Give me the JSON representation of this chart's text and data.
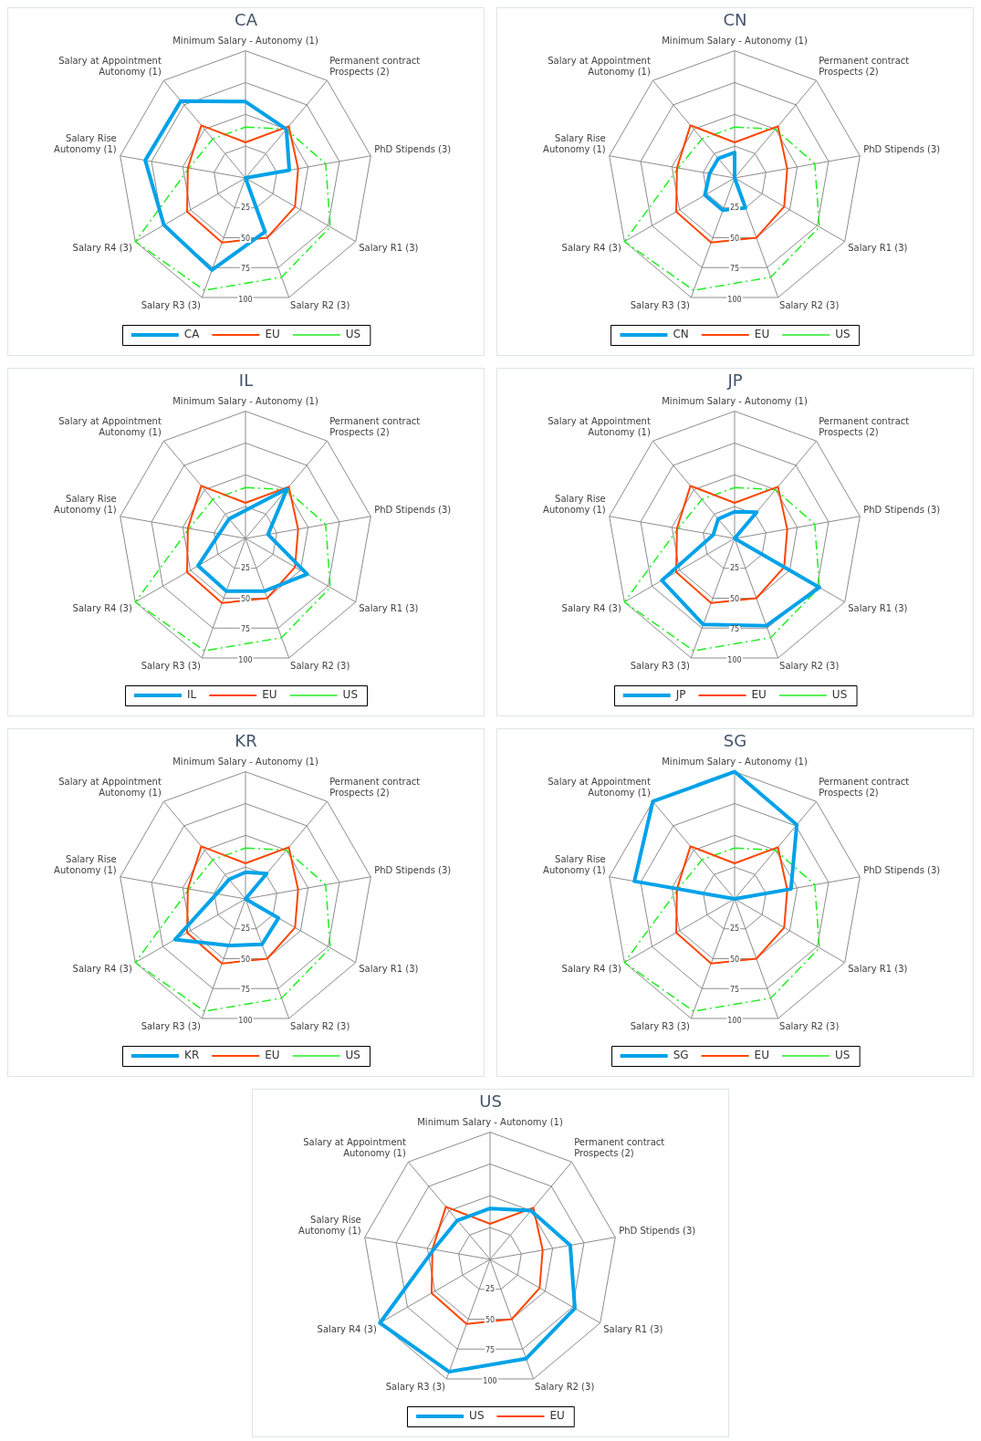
{
  "chart_data": [
    {
      "type": "radar",
      "title": "CA",
      "categories": [
        "Minimum Salary - Autonomy (1)",
        "Permanent contract Prospects (2)",
        "PhD Stipends (3)",
        "Salary R1 (3)",
        "Salary R2 (3)",
        "Salary R3 (3)",
        "Salary R4 (3)",
        "Salary Rise Autonomy (1)",
        "Salary at Appointment Autonomy (1)"
      ],
      "ylim": [
        0,
        100
      ],
      "yticks": [
        25,
        50,
        75,
        100
      ],
      "grid": true,
      "legend": "bottom",
      "series": [
        {
          "name": "CA",
          "color": "#00a2e8",
          "values": [
            60,
            50,
            35,
            0,
            45,
            77,
            74,
            80,
            79
          ]
        },
        {
          "name": "EU",
          "color": "#ff4500",
          "values": [
            28,
            53,
            42,
            45,
            50,
            54,
            53,
            46,
            54
          ]
        },
        {
          "name": "US",
          "color": "#22ee22",
          "line_style": "dashed",
          "values": [
            40,
            50,
            64,
            77,
            83,
            94,
            100,
            45,
            40
          ]
        }
      ]
    },
    {
      "type": "radar",
      "title": "CN",
      "categories": [
        "Minimum Salary - Autonomy (1)",
        "Permanent contract Prospects (2)",
        "PhD Stipends (3)",
        "Salary R1 (3)",
        "Salary R2 (3)",
        "Salary R3 (3)",
        "Salary R4 (3)",
        "Salary Rise Autonomy (1)",
        "Salary at Appointment Autonomy (1)"
      ],
      "ylim": [
        0,
        100
      ],
      "yticks": [
        25,
        50,
        75,
        100
      ],
      "grid": true,
      "legend": "bottom",
      "series": [
        {
          "name": "CN",
          "color": "#00a2e8",
          "values": [
            20,
            0,
            0,
            0,
            25,
            27,
            27,
            20,
            20
          ]
        },
        {
          "name": "EU",
          "color": "#ff4500",
          "values": [
            28,
            53,
            42,
            45,
            50,
            54,
            53,
            46,
            54
          ]
        },
        {
          "name": "US",
          "color": "#22ee22",
          "line_style": "dashed",
          "values": [
            40,
            50,
            64,
            77,
            83,
            94,
            100,
            45,
            40
          ]
        }
      ]
    },
    {
      "type": "radar",
      "title": "IL",
      "categories": [
        "Minimum Salary - Autonomy (1)",
        "Permanent contract Prospects (2)",
        "PhD Stipends (3)",
        "Salary R1 (3)",
        "Salary R2 (3)",
        "Salary R3 (3)",
        "Salary R4 (3)",
        "Salary Rise Autonomy (1)",
        "Salary at Appointment Autonomy (1)"
      ],
      "ylim": [
        0,
        100
      ],
      "yticks": [
        25,
        50,
        75,
        100
      ],
      "grid": true,
      "legend": "bottom",
      "series": [
        {
          "name": "IL",
          "color": "#00a2e8",
          "values": [
            22,
            51,
            18,
            56,
            44,
            44,
            43,
            21,
            20
          ]
        },
        {
          "name": "EU",
          "color": "#ff4500",
          "values": [
            28,
            53,
            42,
            45,
            50,
            54,
            53,
            46,
            54
          ]
        },
        {
          "name": "US",
          "color": "#22ee22",
          "line_style": "dashed",
          "values": [
            40,
            50,
            64,
            77,
            83,
            94,
            100,
            45,
            40
          ]
        }
      ]
    },
    {
      "type": "radar",
      "title": "JP",
      "categories": [
        "Minimum Salary - Autonomy (1)",
        "Permanent contract Prospects (2)",
        "PhD Stipends (3)",
        "Salary R1 (3)",
        "Salary R2 (3)",
        "Salary R3 (3)",
        "Salary R4 (3)",
        "Salary Rise Autonomy (1)",
        "Salary at Appointment Autonomy (1)"
      ],
      "ylim": [
        0,
        100
      ],
      "yticks": [
        25,
        50,
        75,
        100
      ],
      "grid": true,
      "legend": "bottom",
      "series": [
        {
          "name": "JP",
          "color": "#00a2e8",
          "values": [
            21,
            27,
            0,
            77,
            73,
            72,
            66,
            17,
            20
          ]
        },
        {
          "name": "EU",
          "color": "#ff4500",
          "values": [
            28,
            53,
            42,
            45,
            50,
            54,
            53,
            46,
            54
          ]
        },
        {
          "name": "US",
          "color": "#22ee22",
          "line_style": "dashed",
          "values": [
            40,
            50,
            64,
            77,
            83,
            94,
            100,
            45,
            40
          ]
        }
      ]
    },
    {
      "type": "radar",
      "title": "KR",
      "categories": [
        "Minimum Salary - Autonomy (1)",
        "Permanent contract Prospects (2)",
        "PhD Stipends (3)",
        "Salary R1 (3)",
        "Salary R2 (3)",
        "Salary R3 (3)",
        "Salary R4 (3)",
        "Salary Rise Autonomy (1)",
        "Salary at Appointment Autonomy (1)"
      ],
      "ylim": [
        0,
        100
      ],
      "yticks": [
        25,
        50,
        75,
        100
      ],
      "grid": true,
      "legend": "bottom",
      "series": [
        {
          "name": "KR",
          "color": "#00a2e8",
          "values": [
            21,
            26,
            0,
            30,
            38,
            39,
            64,
            23,
            20
          ]
        },
        {
          "name": "EU",
          "color": "#ff4500",
          "values": [
            28,
            53,
            42,
            45,
            50,
            54,
            53,
            46,
            54
          ]
        },
        {
          "name": "US",
          "color": "#22ee22",
          "line_style": "dashed",
          "values": [
            40,
            50,
            64,
            77,
            83,
            94,
            100,
            45,
            40
          ]
        }
      ]
    },
    {
      "type": "radar",
      "title": "SG",
      "categories": [
        "Minimum Salary - Autonomy (1)",
        "Permanent contract Prospects (2)",
        "PhD Stipends (3)",
        "Salary R1 (3)",
        "Salary R2 (3)",
        "Salary R3 (3)",
        "Salary R4 (3)",
        "Salary Rise Autonomy (1)",
        "Salary at Appointment Autonomy (1)"
      ],
      "ylim": [
        0,
        100
      ],
      "yticks": [
        25,
        50,
        75,
        100
      ],
      "grid": true,
      "legend": "bottom",
      "series": [
        {
          "name": "SG",
          "color": "#00a2e8",
          "values": [
            100,
            76,
            45,
            0,
            0,
            0,
            0,
            80,
            100
          ]
        },
        {
          "name": "EU",
          "color": "#ff4500",
          "values": [
            28,
            53,
            42,
            45,
            50,
            54,
            53,
            46,
            54
          ]
        },
        {
          "name": "US",
          "color": "#22ee22",
          "line_style": "dashed",
          "values": [
            40,
            50,
            64,
            77,
            83,
            94,
            100,
            45,
            40
          ]
        }
      ]
    },
    {
      "type": "radar",
      "title": "US",
      "categories": [
        "Minimum Salary - Autonomy (1)",
        "Permanent contract Prospects (2)",
        "PhD Stipends (3)",
        "Salary R1 (3)",
        "Salary R2 (3)",
        "Salary R3 (3)",
        "Salary R4 (3)",
        "Salary Rise Autonomy (1)",
        "Salary at Appointment Autonomy (1)"
      ],
      "ylim": [
        0,
        100
      ],
      "yticks": [
        25,
        50,
        75,
        100
      ],
      "grid": true,
      "legend": "bottom",
      "series": [
        {
          "name": "US",
          "color": "#00a2e8",
          "values": [
            40,
            50,
            64,
            77,
            83,
            94,
            100,
            45,
            40
          ]
        },
        {
          "name": "EU",
          "color": "#ff4500",
          "values": [
            28,
            53,
            42,
            45,
            50,
            54,
            53,
            46,
            54
          ]
        }
      ]
    }
  ]
}
